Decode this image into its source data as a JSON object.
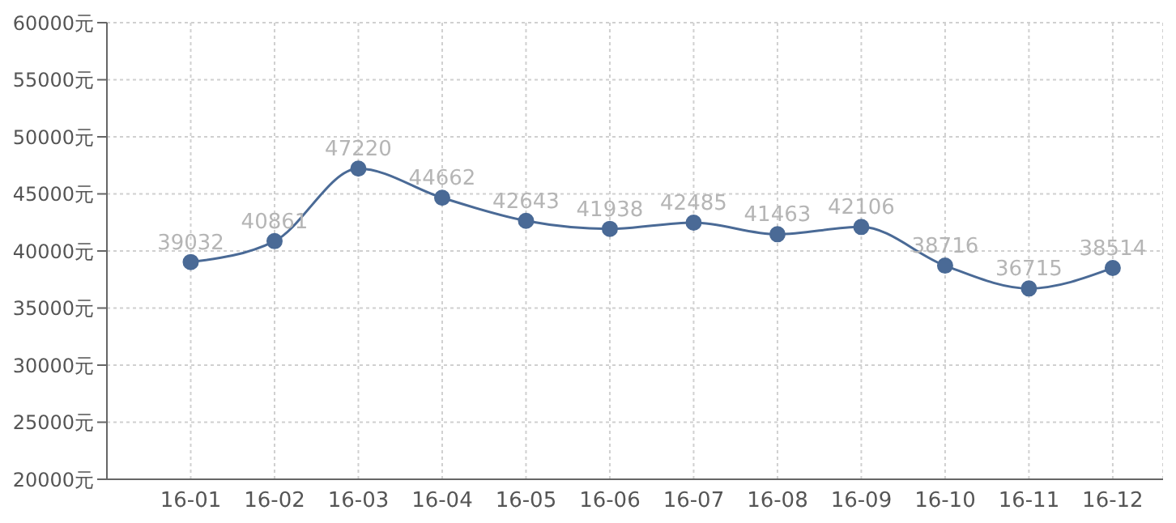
{
  "chart_data": {
    "type": "line",
    "categories": [
      "16-01",
      "16-02",
      "16-03",
      "16-04",
      "16-05",
      "16-06",
      "16-07",
      "16-08",
      "16-09",
      "16-10",
      "16-11",
      "16-12"
    ],
    "series": [
      {
        "color": "#4a6a96",
        "values": [
          39032,
          40861,
          47220,
          44662,
          42643,
          41938,
          42485,
          41463,
          42106,
          38716,
          36715,
          38514
        ]
      }
    ],
    "ylim": [
      20000,
      60000
    ],
    "yticks": [
      {
        "value": 20000,
        "label": "20000元"
      },
      {
        "value": 25000,
        "label": "25000元"
      },
      {
        "value": 30000,
        "label": "30000元"
      },
      {
        "value": 35000,
        "label": "35000元"
      },
      {
        "value": 40000,
        "label": "40000元"
      },
      {
        "value": 45000,
        "label": "45000元"
      },
      {
        "value": 50000,
        "label": "50000元"
      },
      {
        "value": 55000,
        "label": "55000元"
      },
      {
        "value": 60000,
        "label": "60000元"
      }
    ],
    "grid": true,
    "marker": "circle",
    "data_labels": true,
    "legend": false
  }
}
